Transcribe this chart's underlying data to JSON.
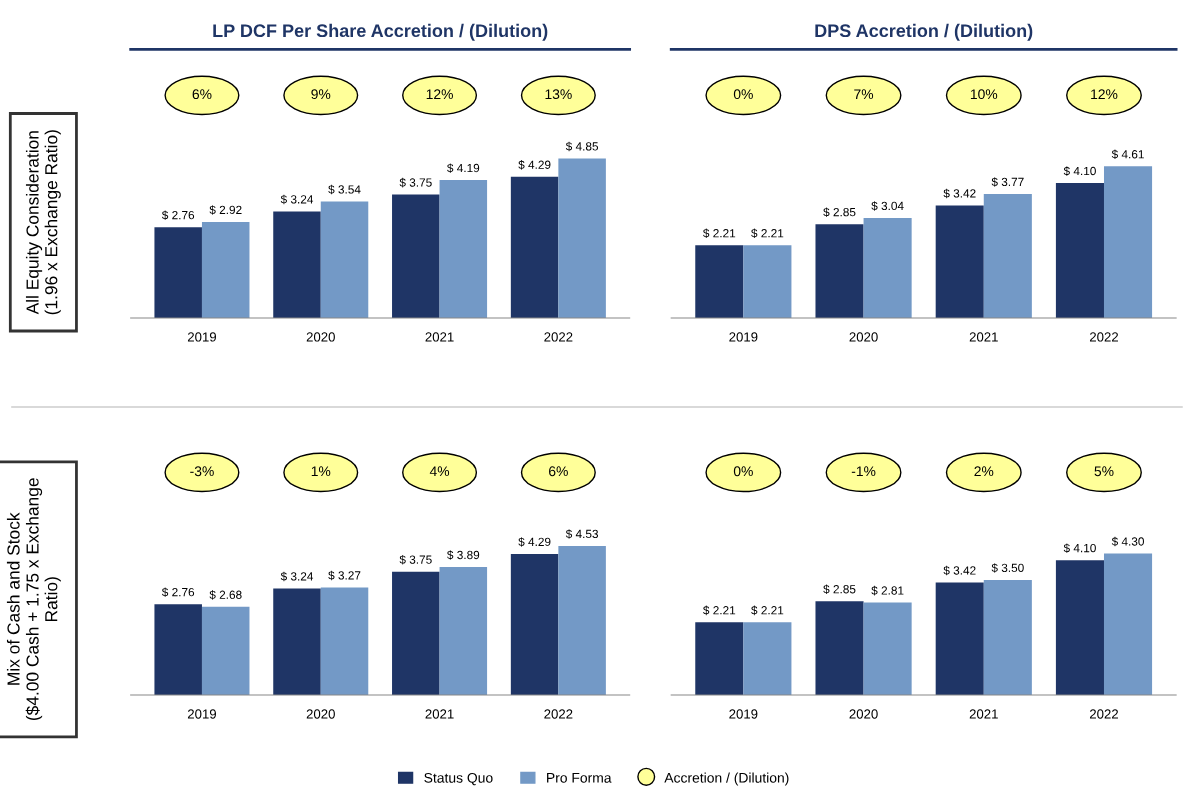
{
  "chart_data": [
    {
      "type": "bar",
      "title": "LP DCF Per Share Accretion / (Dilution)",
      "ylabel": "All Equity Consideration\n(1.96 x Exchange Ratio)",
      "categories": [
        "2019",
        "2020",
        "2021",
        "2022"
      ],
      "tick_labels": "x",
      "grid": false,
      "series": [
        {
          "color": "#1f3566",
          "values": [
            2.76,
            3.24,
            3.75,
            4.29
          ],
          "value_labels": [
            "$ 2.76",
            "$ 3.24",
            "$ 3.75",
            "$ 4.29"
          ]
        },
        {
          "color": "#7399c6",
          "values": [
            2.92,
            3.54,
            4.19,
            4.85
          ],
          "value_labels": [
            "$ 2.92",
            "$ 3.54",
            "$ 4.19",
            "$ 4.85"
          ]
        }
      ],
      "annotations": [
        "6%",
        "9%",
        "12%",
        "13%"
      ]
    },
    {
      "type": "bar",
      "title": "DPS Accretion / (Dilution)",
      "categories": [
        "2019",
        "2020",
        "2021",
        "2022"
      ],
      "tick_labels": "x",
      "grid": false,
      "series": [
        {
          "color": "#1f3566",
          "values": [
            2.21,
            2.85,
            3.42,
            4.1
          ],
          "value_labels": [
            "$ 2.21",
            "$ 2.85",
            "$ 3.42",
            "$ 4.10"
          ]
        },
        {
          "color": "#7399c6",
          "values": [
            2.21,
            3.04,
            3.77,
            4.61
          ],
          "value_labels": [
            "$ 2.21",
            "$ 3.04",
            "$ 3.77",
            "$ 4.61"
          ]
        }
      ],
      "annotations": [
        "0%",
        "7%",
        "10%",
        "12%"
      ]
    },
    {
      "type": "bar",
      "ylabel": "Mix of Cash and Stock\n($4.00 Cash + 1.75 x Exchange\nRatio)",
      "categories": [
        "2019",
        "2020",
        "2021",
        "2022"
      ],
      "tick_labels": "x",
      "grid": false,
      "series": [
        {
          "color": "#1f3566",
          "values": [
            2.76,
            3.24,
            3.75,
            4.29
          ],
          "value_labels": [
            "$ 2.76",
            "$ 3.24",
            "$ 3.75",
            "$ 4.29"
          ]
        },
        {
          "color": "#7399c6",
          "values": [
            2.68,
            3.27,
            3.89,
            4.53
          ],
          "value_labels": [
            "$ 2.68",
            "$ 3.27",
            "$ 3.89",
            "$ 4.53"
          ]
        }
      ],
      "annotations": [
        "-3%",
        "1%",
        "4%",
        "6%"
      ]
    },
    {
      "type": "bar",
      "categories": [
        "2019",
        "2020",
        "2021",
        "2022"
      ],
      "tick_labels": "x",
      "grid": false,
      "legend": "bottom",
      "series": [
        {
          "name": "Status Quo",
          "color": "#1f3566",
          "values": [
            2.21,
            2.85,
            3.42,
            4.1
          ],
          "value_labels": [
            "$ 2.21",
            "$ 2.85",
            "$ 3.42",
            "$ 4.10"
          ]
        },
        {
          "name": "Pro Forma",
          "color": "#7399c6",
          "values": [
            2.21,
            2.81,
            3.5,
            4.3
          ],
          "value_labels": [
            "$ 2.21",
            "$ 2.81",
            "$ 3.50",
            "$ 4.30"
          ]
        }
      ],
      "annotations": [
        "0%",
        "-1%",
        "2%",
        "5%",
        "Accretion / (Dilution)"
      ]
    }
  ]
}
